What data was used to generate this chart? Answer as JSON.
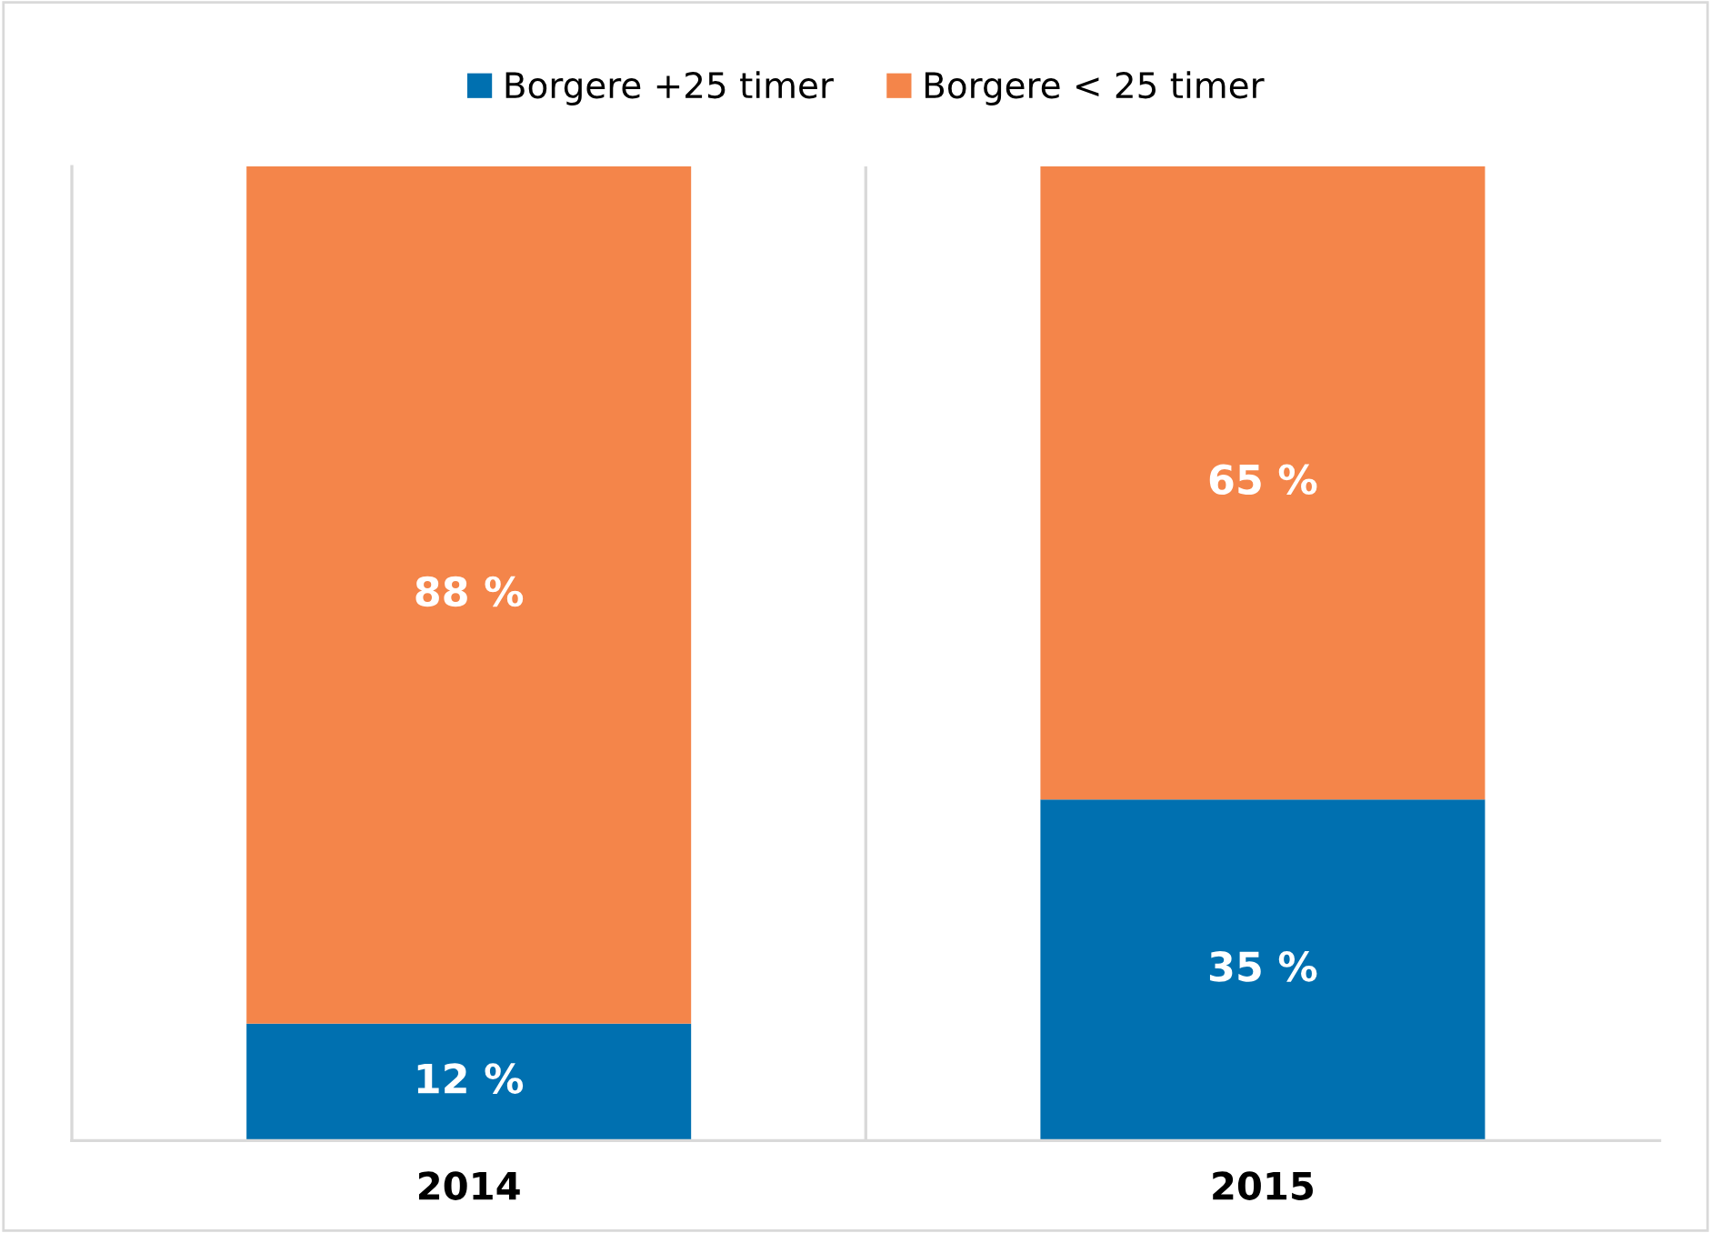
{
  "chart_data": {
    "type": "bar",
    "stacked": true,
    "categories": [
      "2014",
      "2015"
    ],
    "series": [
      {
        "name": "Borgere +25 timer",
        "color": "#0070b0",
        "values": [
          12,
          35
        ],
        "value_labels": [
          "12 %",
          "35 %"
        ]
      },
      {
        "name": "Borgere < 25 timer",
        "color": "#f4854a",
        "values": [
          88,
          65
        ],
        "value_labels": [
          "88 %",
          "65 %"
        ]
      }
    ],
    "ylim": [
      0,
      100
    ],
    "tick_labels": "x",
    "grid": "x",
    "legend": "top"
  }
}
